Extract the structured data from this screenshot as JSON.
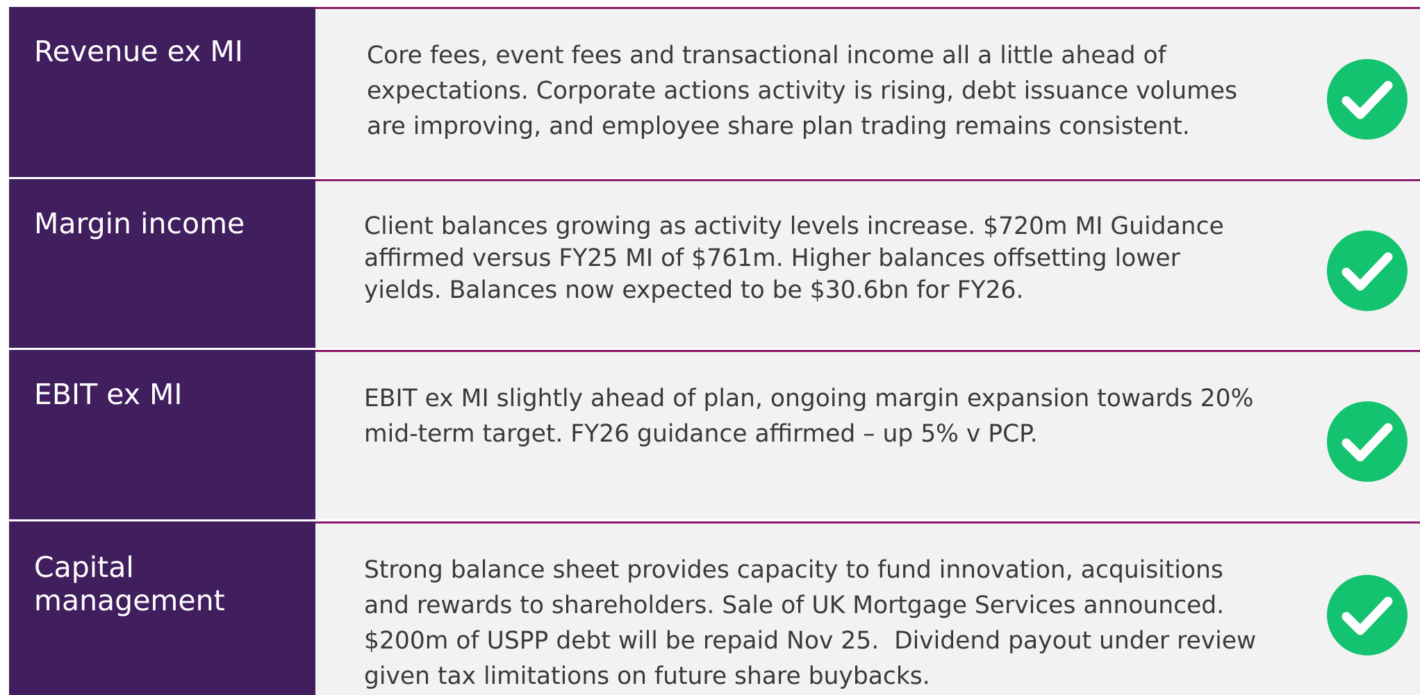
{
  "rows": [
    {
      "label": "Revenue ex MI",
      "lines": [
        "Core fees, event fees and transactional income all a little ahead of",
        "expectations. Corporate actions activity is rising, debt issuance volumes",
        "are improving, and employee share plan trading remains consistent."
      ]
    },
    {
      "label": "Margin income",
      "lines": [
        "Client balances growing as activity levels increase. $720m MI Guidance",
        "affirmed versus FY25 MI of $761m. Higher balances offsetting lower",
        "yields. Balances now expected to be $30.6bn for FY26."
      ]
    },
    {
      "label": "EBIT ex MI",
      "lines": [
        "EBIT ex MI slightly ahead of plan, ongoing margin expansion towards 20%",
        "mid-term target. FY26 guidance affirmed – up 5% v PCP."
      ]
    },
    {
      "label": "Capital management",
      "lines": [
        "Strong balance sheet provides capacity to fund innovation, acquisitions",
        "and rewards to shareholders. Sale of UK Mortgage Services announced.",
        "$200m of USPP debt will be repaid Nov 25.  Dividend payout under review",
        "given tax limitations on future share buybacks."
      ]
    }
  ]
}
